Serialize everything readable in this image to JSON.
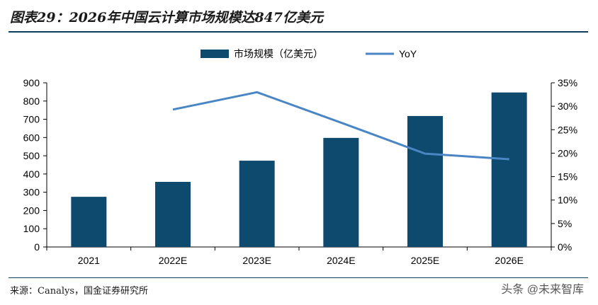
{
  "figure": {
    "title": "图表29：2026年中国云计算市场规模达847亿美元",
    "source": "来源：Canalys，国金证券研究所",
    "watermark": "头条 @未来智库"
  },
  "colors": {
    "bar": "#0e4a6e",
    "line": "#4a86c4",
    "rule": "#0e3d5c"
  },
  "chart_data": {
    "type": "bar",
    "categories": [
      "2021",
      "2022E",
      "2023E",
      "2024E",
      "2025E",
      "2026E"
    ],
    "series": [
      {
        "name": "市场规模（亿美元）",
        "type": "bar",
        "axis": "left",
        "values": [
          275,
          357,
          473,
          598,
          718,
          847
        ]
      },
      {
        "name": "YoY",
        "type": "line",
        "axis": "right",
        "values": [
          null,
          0.293,
          0.33,
          0.265,
          0.199,
          0.187
        ]
      }
    ],
    "y_left": {
      "range": [
        0,
        900
      ],
      "ticks": [
        "0",
        "100",
        "200",
        "300",
        "400",
        "500",
        "600",
        "700",
        "800",
        "900"
      ]
    },
    "y_right": {
      "range": [
        0,
        0.35
      ],
      "ticks": [
        "0%",
        "5%",
        "10%",
        "15%",
        "20%",
        "25%",
        "30%",
        "35%"
      ]
    },
    "grid": false,
    "legend": "top-center"
  }
}
